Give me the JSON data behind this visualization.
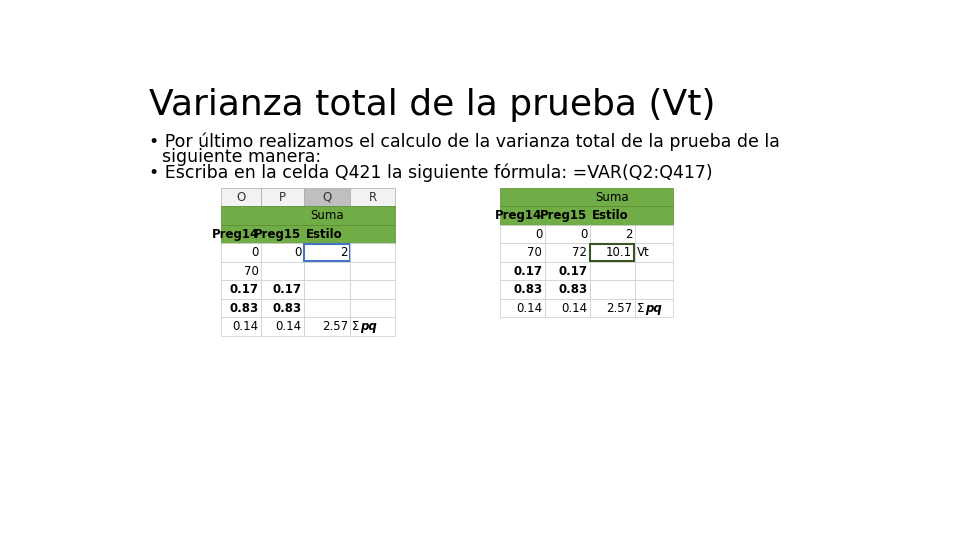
{
  "title": "Varianza total de la prueba (Vt)",
  "bullet1_line1": "Por último realizamos el calculo de la varianza total de la prueba de la",
  "bullet1_line2": "siguiente manera:",
  "bullet2": "Escriba en la celda Q421 la siguiente fórmula: =VAR(Q2:Q417)",
  "bg_color": "#ffffff",
  "title_color": "#000000",
  "text_color": "#000000",
  "green_color": "#70AD47",
  "dark_green_border": "#375623",
  "blue_color": "#4472C4",
  "gray_header_q": "#BFBFBF",
  "gray_header_other": "#F2F2F2",
  "table1": {
    "col_headers": [
      "O",
      "P",
      "Q",
      "R"
    ],
    "subheader_row": [
      "Preg14",
      "Preg15",
      "Estilo",
      ""
    ],
    "rows": [
      [
        "0",
        "0",
        "2",
        ""
      ],
      [
        "70",
        "",
        "",
        ""
      ],
      [
        "0.17",
        "0.17",
        "",
        ""
      ],
      [
        "0.83",
        "0.83",
        "",
        ""
      ],
      [
        "0.14",
        "0.14",
        "2.57",
        "Σ pq"
      ]
    ],
    "highlighted_cell": [
      0,
      2
    ],
    "formula_row": 1,
    "formula_col": 1
  },
  "table2": {
    "subheader_row": [
      "Preg14",
      "Preg15",
      "Estilo",
      ""
    ],
    "rows": [
      [
        "0",
        "0",
        "2",
        ""
      ],
      [
        "70",
        "72",
        "10.1",
        "Vt"
      ],
      [
        "0.17",
        "0.17",
        "",
        ""
      ],
      [
        "0.83",
        "0.83",
        "",
        ""
      ],
      [
        "0.14",
        "0.14",
        "2.57",
        "Σ pq"
      ]
    ],
    "highlighted_cell": [
      1,
      2
    ]
  }
}
